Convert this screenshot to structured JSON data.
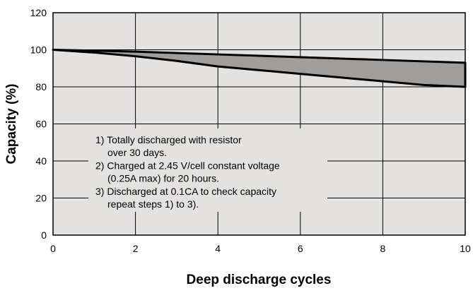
{
  "chart_data": {
    "type": "area",
    "title": "",
    "xlabel": "Deep discharge cycles",
    "ylabel": "Capacity (%)",
    "xlim": [
      0,
      10
    ],
    "ylim": [
      0,
      120
    ],
    "x_ticks": [
      0,
      2,
      4,
      6,
      8,
      10
    ],
    "y_ticks": [
      0,
      20,
      40,
      60,
      80,
      100,
      120
    ],
    "grid": true,
    "colors": {
      "plot_background": "#e4e2e0",
      "band_fill": "#a09d9b",
      "band_stroke": "#000000",
      "grid": "#000000",
      "note_background": "#e4e2e0"
    },
    "series": [
      {
        "x": [
          0,
          2,
          4,
          6,
          8,
          10
        ],
        "values": [
          100,
          99,
          97.5,
          96,
          94.5,
          93
        ]
      },
      {
        "x": [
          0,
          1,
          2,
          3,
          4,
          5,
          6,
          7,
          8,
          9,
          10
        ],
        "values": [
          100,
          98.5,
          96.5,
          94,
          91,
          89,
          87,
          85,
          83,
          81,
          80
        ]
      }
    ],
    "annotations": [
      "1) Totally discharged with resistor",
      "over 30 days.",
      "2) Charged at 2.45 V/cell constant voltage",
      "(0.25A max) for 20 hours.",
      "3) Discharged at 0.1CA to check capacity",
      "repeat steps 1) to 3)."
    ]
  }
}
